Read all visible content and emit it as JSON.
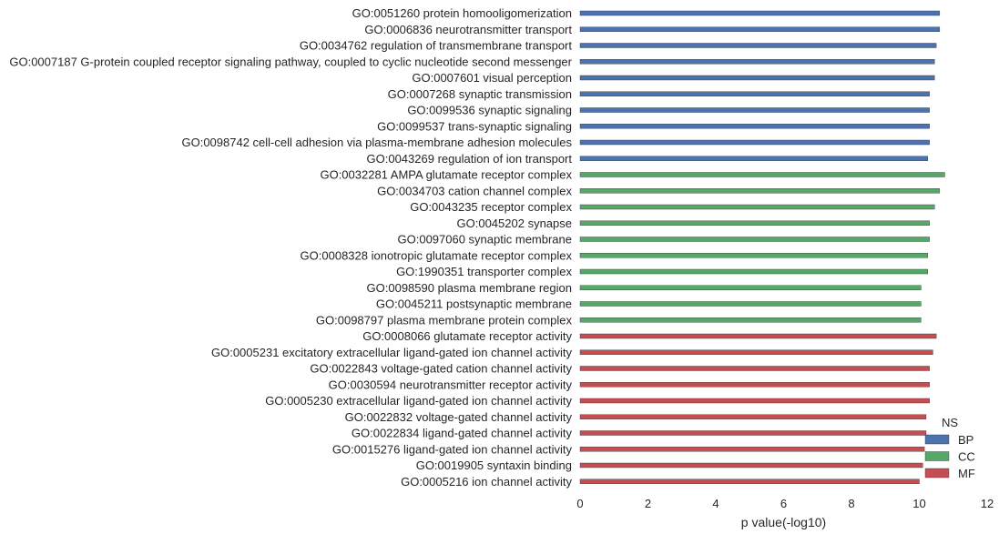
{
  "chart_data": {
    "type": "bar",
    "orientation": "horizontal",
    "xlabel": "p value(-log10)",
    "ylabel": "",
    "xlim": [
      0,
      12
    ],
    "xticks": [
      "0",
      "2",
      "4",
      "6",
      "8",
      "10",
      "12"
    ],
    "grid": false,
    "legend": {
      "title": "NS",
      "position": "bottom-right",
      "entries": [
        {
          "name": "BP",
          "color": "#4c72b0"
        },
        {
          "name": "CC",
          "color": "#55a868"
        },
        {
          "name": "MF",
          "color": "#c44e52"
        }
      ]
    },
    "bars": [
      {
        "label": "GO:0051260 protein homooligomerization",
        "group": "BP",
        "value": 10.6
      },
      {
        "label": "GO:0006836 neurotransmitter transport",
        "group": "BP",
        "value": 10.6
      },
      {
        "label": "GO:0034762 regulation of transmembrane transport",
        "group": "BP",
        "value": 10.5
      },
      {
        "label": "GO:0007187 G-protein coupled receptor signaling pathway, coupled to cyclic nucleotide second messenger",
        "group": "BP",
        "value": 10.45
      },
      {
        "label": "GO:0007601 visual perception",
        "group": "BP",
        "value": 10.45
      },
      {
        "label": "GO:0007268 synaptic transmission",
        "group": "BP",
        "value": 10.3
      },
      {
        "label": "GO:0099536 synaptic signaling",
        "group": "BP",
        "value": 10.3
      },
      {
        "label": "GO:0099537 trans-synaptic signaling",
        "group": "BP",
        "value": 10.3
      },
      {
        "label": "GO:0098742 cell-cell adhesion via plasma-membrane adhesion molecules",
        "group": "BP",
        "value": 10.3
      },
      {
        "label": "GO:0043269 regulation of ion transport",
        "group": "BP",
        "value": 10.25
      },
      {
        "label": "GO:0032281 AMPA glutamate receptor complex",
        "group": "CC",
        "value": 10.75
      },
      {
        "label": "GO:0034703 cation channel complex",
        "group": "CC",
        "value": 10.6
      },
      {
        "label": "GO:0043235 receptor complex",
        "group": "CC",
        "value": 10.45
      },
      {
        "label": "GO:0045202 synapse",
        "group": "CC",
        "value": 10.3
      },
      {
        "label": "GO:0097060 synaptic membrane",
        "group": "CC",
        "value": 10.3
      },
      {
        "label": "GO:0008328 ionotropic glutamate receptor complex",
        "group": "CC",
        "value": 10.25
      },
      {
        "label": "GO:1990351 transporter complex",
        "group": "CC",
        "value": 10.25
      },
      {
        "label": "GO:0098590 plasma membrane region",
        "group": "CC",
        "value": 10.05
      },
      {
        "label": "GO:0045211 postsynaptic membrane",
        "group": "CC",
        "value": 10.05
      },
      {
        "label": "GO:0098797 plasma membrane protein complex",
        "group": "CC",
        "value": 10.05
      },
      {
        "label": "GO:0008066 glutamate receptor activity",
        "group": "MF",
        "value": 10.5
      },
      {
        "label": "GO:0005231 excitatory extracellular ligand-gated ion channel activity",
        "group": "MF",
        "value": 10.4
      },
      {
        "label": "GO:0022843 voltage-gated cation channel activity",
        "group": "MF",
        "value": 10.3
      },
      {
        "label": "GO:0030594 neurotransmitter receptor activity",
        "group": "MF",
        "value": 10.3
      },
      {
        "label": "GO:0005230 extracellular ligand-gated ion channel activity",
        "group": "MF",
        "value": 10.3
      },
      {
        "label": "GO:0022832 voltage-gated channel activity",
        "group": "MF",
        "value": 10.2
      },
      {
        "label": "GO:0022834 ligand-gated channel activity",
        "group": "MF",
        "value": 10.2
      },
      {
        "label": "GO:0015276 ligand-gated ion channel activity",
        "group": "MF",
        "value": 10.15
      },
      {
        "label": "GO:0019905 syntaxin binding",
        "group": "MF",
        "value": 10.1
      },
      {
        "label": "GO:0005216 ion channel activity",
        "group": "MF",
        "value": 10.0
      }
    ]
  }
}
